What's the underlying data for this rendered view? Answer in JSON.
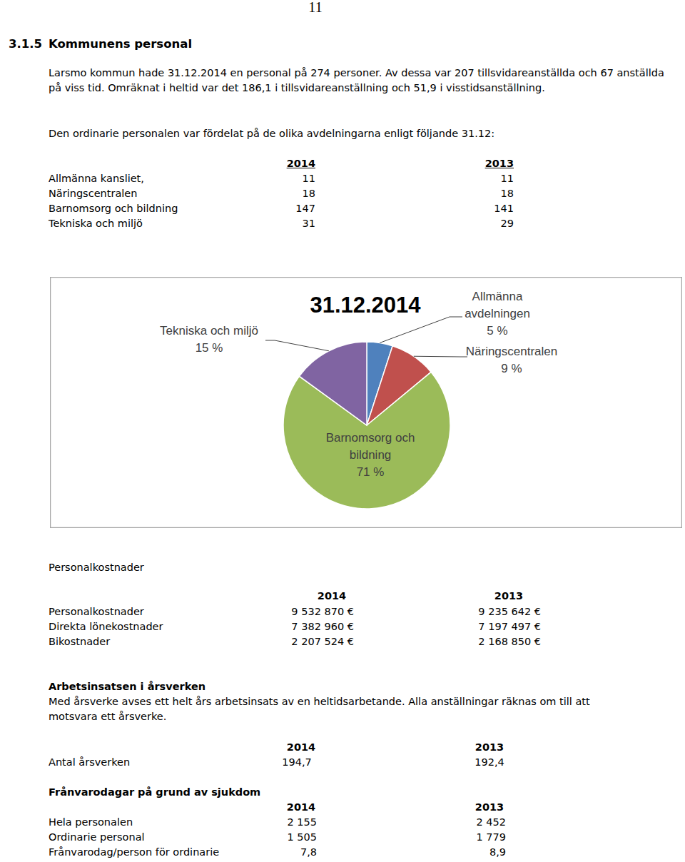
{
  "page_number": "11",
  "section": {
    "number": "3.1.5",
    "title": "Kommunens personal"
  },
  "paragraphs": [
    "Larsmo kommun hade 31.12.2014 en personal på 274 personer. Av dessa var 207 tillsvidareanställda och 67 anställda på viss tid. Omräknat i heltid var det 186,1 i tillsvidareanställning och 51,9 i visstidsanställning.",
    "Den ordinarie personalen var fördelat på de olika avdelningarna enligt följande 31.12:"
  ],
  "departments": {
    "columns": [
      "2014",
      "2013"
    ],
    "rows": [
      [
        "Allmänna kansliet,",
        "11",
        "11"
      ],
      [
        "Näringscentralen",
        "18",
        "18"
      ],
      [
        "Barnomsorg och bildning",
        "147",
        "141"
      ],
      [
        "Tekniska och miljö",
        "31",
        "29"
      ]
    ]
  },
  "chart_data": {
    "type": "pie",
    "title": "31.12.2014",
    "categories": [
      "Allmänna avdelningen",
      "Näringscentralen",
      "Barnomsorg och bildning",
      "Tekniska och miljö"
    ],
    "values": [
      5,
      9,
      71,
      15
    ],
    "value_labels": [
      "5 %",
      "9 %",
      "71 %",
      "15 %"
    ],
    "colors": [
      "#4f81bd",
      "#c0504d",
      "#9bbb59",
      "#8064a2"
    ],
    "data_labels": true
  },
  "costs": {
    "title": "Personalkostnader",
    "columns": [
      "2014",
      "2013"
    ],
    "rows": [
      [
        "Personalkostnader",
        "9 532 870 €",
        "9 235 642 €"
      ],
      [
        "Direkta lönekostnader",
        "7 382 960 €",
        "7 197 497 €"
      ],
      [
        "Bikostnader",
        "2 207 524 €",
        "2 168 850 €"
      ]
    ]
  },
  "work_input": {
    "title": "Arbetsinsatsen i årsverken",
    "description": "Med årsverke avses ett helt års arbetsinsats av en heltidsarbetande. Alla anställningar räknas om till att motsvara ett årsverke.",
    "columns": [
      "2014",
      "2013"
    ],
    "rows": [
      [
        "Antal årsverken",
        "194,7",
        "192,4"
      ]
    ]
  },
  "sick_leave": {
    "title": "Frånvarodagar på grund av sjukdom",
    "columns": [
      "2014",
      "2013"
    ],
    "rows": [
      [
        "Hela personalen",
        "2 155",
        "2 452"
      ],
      [
        "Ordinarie personal",
        "1 505",
        "1 779"
      ],
      [
        "Frånvarodag/person för ordinarie",
        "7,8",
        "8,9"
      ]
    ]
  }
}
